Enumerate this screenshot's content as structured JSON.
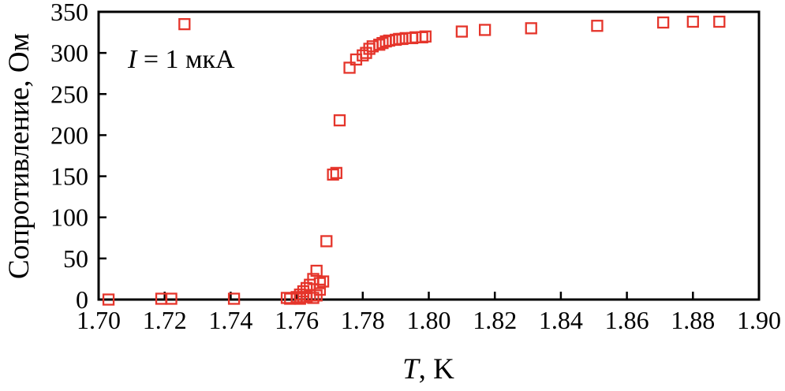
{
  "chart_data": {
    "type": "scatter",
    "title": "",
    "xlabel_var": "T",
    "xlabel_rest": ", K",
    "ylabel": "Сопротивление, Ом",
    "annotation_var": "I",
    "annotation_rest": " = 1 мкА",
    "xlim": [
      1.7,
      1.9
    ],
    "ylim": [
      0,
      350
    ],
    "xticks": [
      "1.70",
      "1.72",
      "1.74",
      "1.76",
      "1.78",
      "1.80",
      "1.82",
      "1.84",
      "1.86",
      "1.88",
      "1.90"
    ],
    "yticks": [
      "0",
      "50",
      "100",
      "150",
      "200",
      "250",
      "300",
      "350"
    ],
    "grid": false,
    "legend": "none",
    "marker": "open-square",
    "marker_color": "#e5352b",
    "points": [
      [
        1.703,
        0
      ],
      [
        1.719,
        1
      ],
      [
        1.722,
        1
      ],
      [
        1.726,
        335
      ],
      [
        1.741,
        1
      ],
      [
        1.757,
        2
      ],
      [
        1.758,
        1
      ],
      [
        1.76,
        3
      ],
      [
        1.761,
        1
      ],
      [
        1.761,
        6
      ],
      [
        1.762,
        3
      ],
      [
        1.762,
        10
      ],
      [
        1.763,
        14
      ],
      [
        1.763,
        3
      ],
      [
        1.764,
        5
      ],
      [
        1.764,
        18
      ],
      [
        1.765,
        2
      ],
      [
        1.765,
        25
      ],
      [
        1.766,
        35
      ],
      [
        1.766,
        5
      ],
      [
        1.767,
        12
      ],
      [
        1.767,
        20
      ],
      [
        1.768,
        22
      ],
      [
        1.769,
        71
      ],
      [
        1.771,
        152
      ],
      [
        1.772,
        154
      ],
      [
        1.773,
        218
      ],
      [
        1.776,
        282
      ],
      [
        1.778,
        292
      ],
      [
        1.78,
        297
      ],
      [
        1.781,
        300
      ],
      [
        1.782,
        305
      ],
      [
        1.783,
        308
      ],
      [
        1.785,
        310
      ],
      [
        1.786,
        312
      ],
      [
        1.787,
        314
      ],
      [
        1.788,
        315
      ],
      [
        1.79,
        316
      ],
      [
        1.791,
        317
      ],
      [
        1.792,
        317
      ],
      [
        1.793,
        318
      ],
      [
        1.795,
        318
      ],
      [
        1.796,
        319
      ],
      [
        1.798,
        319
      ],
      [
        1.799,
        320
      ],
      [
        1.81,
        326
      ],
      [
        1.817,
        328
      ],
      [
        1.831,
        330
      ],
      [
        1.851,
        333
      ],
      [
        1.871,
        337
      ],
      [
        1.88,
        338
      ],
      [
        1.888,
        338
      ]
    ]
  }
}
